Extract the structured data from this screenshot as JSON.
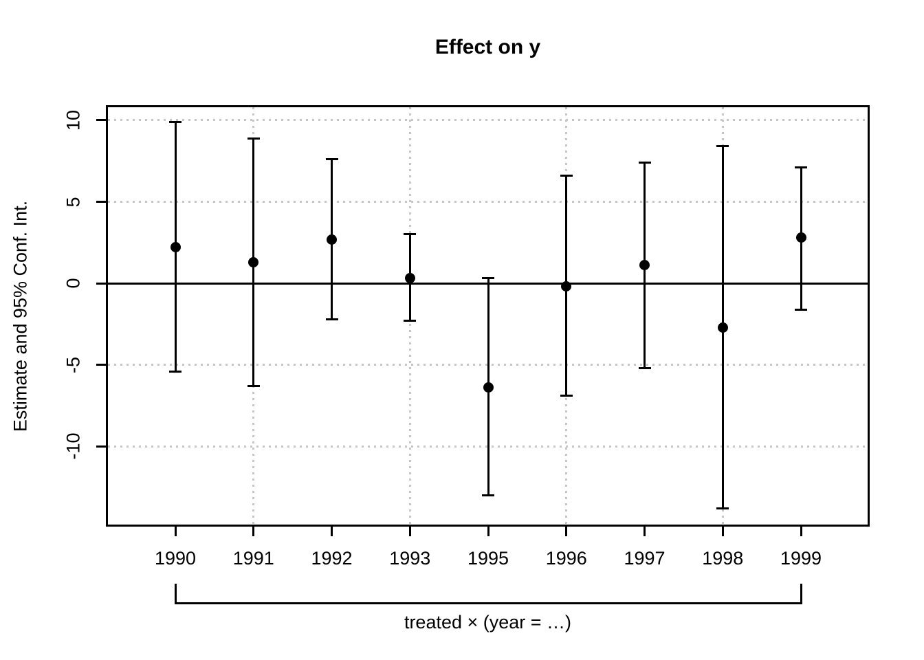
{
  "title": "Effect on y",
  "colors": {
    "foreground": "#000000",
    "grid": "#c6c6c6",
    "background": "#ffffff"
  },
  "chart_data": {
    "type": "scatter",
    "subtype": "point-range-coefficient-plot",
    "title": "Effect on y",
    "xlabel": "treated × (year = …)",
    "ylabel": "Estimate and 95% Conf. Int.",
    "categories": [
      "1990",
      "1991",
      "1992",
      "1993",
      "1995",
      "1996",
      "1997",
      "1998",
      "1999"
    ],
    "series": [
      {
        "name": "estimate",
        "values": [
          2.2,
          1.3,
          2.7,
          0.3,
          -6.4,
          -0.2,
          1.1,
          -2.7,
          2.8
        ]
      },
      {
        "name": "ci_lower",
        "values": [
          -5.4,
          -6.3,
          -2.2,
          -2.3,
          -13.0,
          -6.9,
          -5.2,
          -13.8,
          -1.6
        ]
      },
      {
        "name": "ci_upper",
        "values": [
          9.9,
          8.9,
          7.6,
          3.0,
          0.3,
          6.6,
          7.4,
          8.4,
          7.1
        ]
      }
    ],
    "y_ticks": [
      10,
      5,
      0,
      -5,
      -10
    ],
    "ylim": [
      -14.8,
      10.8
    ],
    "zero_line": true,
    "grid": {
      "style": "dotted",
      "h_ticks": [
        10,
        5,
        0,
        -5,
        -10
      ],
      "v_categories": [
        "1991",
        "1993",
        "1996",
        "1998"
      ]
    },
    "legend_position": "none",
    "x_bracket": {
      "label": "treated × (year = …)",
      "from": "1990",
      "to": "1999"
    }
  }
}
